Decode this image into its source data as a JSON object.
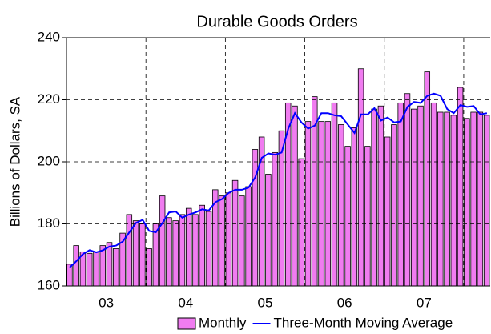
{
  "chart_data": {
    "type": "bar_line",
    "title": "Durable Goods Orders",
    "y_label": "Billions of Dollars, SA",
    "categories": [
      null,
      null,
      null,
      null,
      null,
      null,
      "03",
      null,
      null,
      null,
      null,
      null,
      null,
      null,
      null,
      null,
      null,
      null,
      "04",
      null,
      null,
      null,
      null,
      null,
      null,
      null,
      null,
      null,
      null,
      null,
      "05",
      null,
      null,
      null,
      null,
      null,
      null,
      null,
      null,
      null,
      null,
      null,
      "06",
      null,
      null,
      null,
      null,
      null,
      null,
      null,
      null,
      null,
      null,
      null,
      "07",
      null,
      null,
      null,
      null,
      null,
      null,
      null,
      null,
      null
    ],
    "series": [
      {
        "name": "Monthly",
        "type": "bar",
        "color": "#f07cf0",
        "values": [
          167,
          173,
          171,
          170.5,
          171,
          173,
          174,
          172,
          177,
          183,
          181,
          180,
          172,
          180,
          189,
          182,
          181,
          183,
          185,
          183,
          186,
          184,
          191,
          189,
          190,
          194,
          189,
          192,
          204,
          208,
          196,
          203,
          210,
          219,
          218,
          201,
          213,
          221,
          213,
          213,
          219,
          212,
          205,
          211,
          230,
          205,
          217,
          218,
          208,
          212,
          219,
          222,
          217,
          218,
          229,
          219,
          216,
          216,
          215,
          224,
          214,
          216,
          216,
          215
        ]
      },
      {
        "name": "Three-Month Moving Average",
        "type": "line",
        "color": "#0000ff",
        "values": [
          166,
          168,
          170.3,
          171.5,
          170.8,
          171.5,
          172.7,
          173,
          174.3,
          177.3,
          180.3,
          181.3,
          177.7,
          177.3,
          180.3,
          183.7,
          184,
          182,
          183,
          183.7,
          184.7,
          184.3,
          187,
          188,
          190,
          191,
          191,
          191.7,
          195,
          201.3,
          202.7,
          202.3,
          203,
          210.7,
          215.7,
          212.7,
          210.7,
          211.7,
          215.7,
          215.7,
          215,
          214.7,
          212,
          209.3,
          215.3,
          215.3,
          217.3,
          213.3,
          214.3,
          212.7,
          213,
          217.7,
          219.3,
          219,
          221.3,
          222,
          221.3,
          217,
          215.7,
          218.3,
          217.7,
          218,
          215.3,
          215.7
        ]
      }
    ],
    "ylim": [
      160,
      240
    ],
    "yticks": [
      160,
      180,
      200,
      220,
      240
    ],
    "grid": true,
    "legend": "bottom"
  }
}
